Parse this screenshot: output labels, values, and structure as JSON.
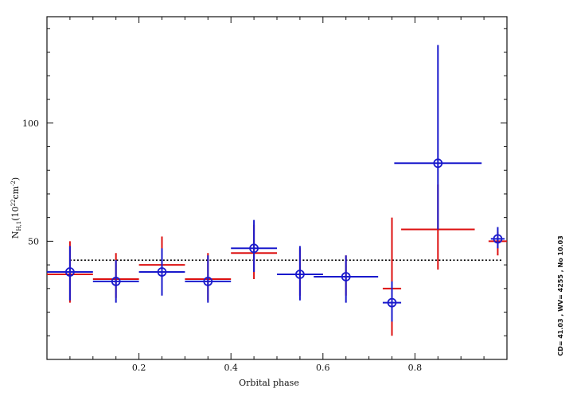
{
  "chart_data": {
    "type": "scatter",
    "xlabel": "Orbital phase",
    "ylabel_main": "N",
    "ylabel_sub": "H,1",
    "ylabel_rest": "(10",
    "ylabel_exp": "22",
    "ylabel_unit": "cm",
    "ylabel_unit_exp": "-2",
    "ylabel_close": ")",
    "xlim": [
      0.0,
      1.0
    ],
    "ylim": [
      0,
      145
    ],
    "x_ticks": [
      0.2,
      0.4,
      0.6,
      0.8
    ],
    "x_tick_labels": [
      "0.2",
      "0.4",
      "0.6",
      "0.8"
    ],
    "y_ticks": [
      50,
      100
    ],
    "y_tick_labels": [
      "50",
      "100"
    ],
    "reference_level": 42,
    "side_note": "CD= 41.03 , WV= 4255 , No 10.03",
    "colors": {
      "red": "#dd1111",
      "blue": "#1a1acc",
      "reference": "#000000"
    },
    "series": [
      {
        "color": "red",
        "marker": "none",
        "points": [
          {
            "x": 0.05,
            "xerr": 0.05,
            "y": 36,
            "ylo": 24,
            "yhi": 50
          },
          {
            "x": 0.15,
            "xerr": 0.05,
            "y": 34,
            "ylo": 26,
            "yhi": 45
          },
          {
            "x": 0.25,
            "xerr": 0.05,
            "y": 40,
            "ylo": 30,
            "yhi": 52
          },
          {
            "x": 0.35,
            "xerr": 0.05,
            "y": 34,
            "ylo": 25,
            "yhi": 45
          },
          {
            "x": 0.45,
            "xerr": 0.05,
            "y": 45,
            "ylo": 34,
            "yhi": 57
          },
          {
            "x": 0.55,
            "xerr": 0.05,
            "y": 36,
            "ylo": 27,
            "yhi": 47
          },
          {
            "x": 0.65,
            "xerr": 0.05,
            "y": 35,
            "ylo": 27,
            "yhi": 44
          },
          {
            "x": 0.75,
            "xerr": 0.02,
            "y": 30,
            "ylo": 10,
            "yhi": 60
          },
          {
            "x": 0.85,
            "xerr": 0.08,
            "y": 55,
            "ylo": 38,
            "yhi": 74
          },
          {
            "x": 0.98,
            "xerr": 0.02,
            "y": 50,
            "ylo": 44,
            "yhi": 54
          }
        ]
      },
      {
        "color": "blue",
        "marker": "open-circle",
        "points": [
          {
            "x": 0.05,
            "xerr": 0.05,
            "y": 37,
            "ylo": 25,
            "yhi": 48
          },
          {
            "x": 0.15,
            "xerr": 0.05,
            "y": 33,
            "ylo": 24,
            "yhi": 42
          },
          {
            "x": 0.25,
            "xerr": 0.05,
            "y": 37,
            "ylo": 27,
            "yhi": 47
          },
          {
            "x": 0.35,
            "xerr": 0.05,
            "y": 33,
            "ylo": 24,
            "yhi": 44
          },
          {
            "x": 0.45,
            "xerr": 0.05,
            "y": 47,
            "ylo": 37,
            "yhi": 59
          },
          {
            "x": 0.55,
            "xerr": 0.05,
            "y": 36,
            "ylo": 25,
            "yhi": 48
          },
          {
            "x": 0.65,
            "xerr": 0.07,
            "y": 35,
            "ylo": 24,
            "yhi": 44
          },
          {
            "x": 0.75,
            "xerr": 0.02,
            "y": 24,
            "ylo": 16,
            "yhi": 33
          },
          {
            "x": 0.85,
            "xerr": 0.095,
            "y": 83,
            "ylo": 55,
            "yhi": 133
          },
          {
            "x": 0.98,
            "xerr": 0.015,
            "y": 51,
            "ylo": 47,
            "yhi": 56
          }
        ]
      }
    ]
  }
}
